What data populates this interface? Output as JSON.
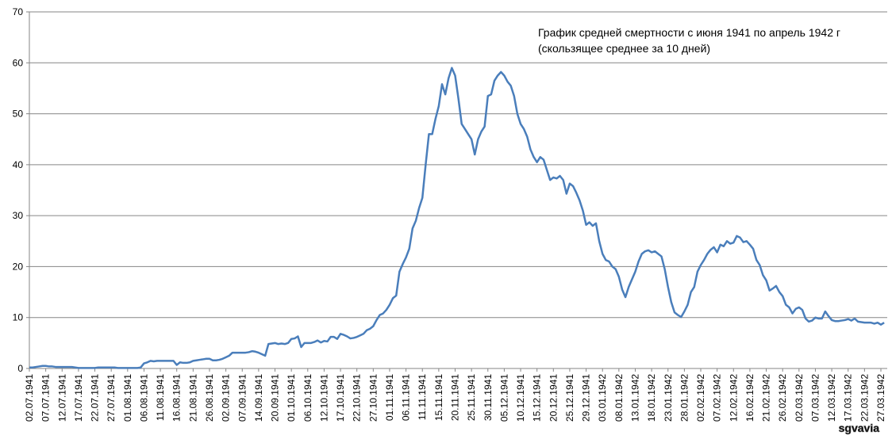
{
  "chart_data": {
    "type": "line",
    "annotation": [
      "График  средней смертности  с июня 1941 по апрель 1942 г",
      "(скользящее среднее за 10 дней)"
    ],
    "watermark": "sgvavia",
    "color": "#4a7ebb",
    "ylim": [
      0,
      70
    ],
    "yticks": [
      0,
      10,
      20,
      30,
      40,
      50,
      60,
      70
    ],
    "grid": true,
    "categories": [
      "02.07.1941",
      null,
      null,
      null,
      null,
      "07.07.1941",
      null,
      null,
      null,
      null,
      "12.07.1941",
      null,
      null,
      null,
      null,
      "17.07.1941",
      null,
      null,
      null,
      null,
      "22.07.1941",
      null,
      null,
      null,
      null,
      "27.07.1941",
      null,
      null,
      null,
      null,
      "01.08.1941",
      null,
      null,
      null,
      null,
      "06.08.1941",
      null,
      null,
      null,
      null,
      "11.08.1941",
      null,
      null,
      null,
      null,
      "16.08.1941",
      null,
      null,
      null,
      null,
      "21.08.1941",
      null,
      null,
      null,
      null,
      "26.08.1941",
      null,
      null,
      null,
      null,
      "02.09.1941",
      null,
      null,
      null,
      null,
      "07.09.1941",
      null,
      null,
      null,
      null,
      "14.09.1941",
      null,
      null,
      null,
      null,
      "20.09.1941",
      null,
      null,
      null,
      null,
      "01.10.1941",
      null,
      null,
      null,
      null,
      "06.10.1941",
      null,
      null,
      null,
      null,
      "12.10.1941",
      null,
      null,
      null,
      null,
      "17.10.1941",
      null,
      null,
      null,
      null,
      "22.10.1941",
      null,
      null,
      null,
      null,
      "27.10.1941",
      null,
      null,
      null,
      null,
      "01.11.1941",
      null,
      null,
      null,
      null,
      "06.11.1941",
      null,
      null,
      null,
      null,
      "11.11.1941",
      null,
      null,
      null,
      null,
      "15.11.1941",
      null,
      null,
      null,
      null,
      "20.11.1941",
      null,
      null,
      null,
      null,
      "25.11.1941",
      null,
      null,
      null,
      null,
      "30.11.1941",
      null,
      null,
      null,
      null,
      "05.12.1941",
      null,
      null,
      null,
      null,
      "10.12.1941",
      null,
      null,
      null,
      null,
      "15.12.1941",
      null,
      null,
      null,
      null,
      "20.12.1941",
      null,
      null,
      null,
      null,
      "25.12.1941",
      null,
      null,
      null,
      null,
      "29.12.1941",
      null,
      null,
      null,
      null,
      "03.01.1942",
      null,
      null,
      null,
      null,
      "08.01.1942",
      null,
      null,
      null,
      null,
      "13.01.1942",
      null,
      null,
      null,
      null,
      "18.01.1942",
      null,
      null,
      null,
      null,
      "23.01.1942",
      null,
      null,
      null,
      null,
      "28.01.1942",
      null,
      null,
      null,
      null,
      "02.02.1942",
      null,
      null,
      null,
      null,
      "07.02.1942",
      null,
      null,
      null,
      null,
      "12.02.1942",
      null,
      null,
      null,
      null,
      "16.02.1942",
      null,
      null,
      null,
      null,
      "21.02.1942",
      null,
      null,
      null,
      null,
      "26.02.1942",
      null,
      null,
      null,
      null,
      "02.03.1942",
      null,
      null,
      null,
      null,
      "07.03.1942",
      null,
      null,
      null,
      null,
      "12.03.1942",
      null,
      null,
      null,
      null,
      "17.03.1942",
      null,
      null,
      null,
      null,
      "22.03.1942",
      null,
      null,
      null,
      null,
      "27.03.1942",
      null
    ],
    "values": [
      0.2,
      0.2,
      0.3,
      0.4,
      0.5,
      0.5,
      0.4,
      0.4,
      0.3,
      0.3,
      0.3,
      0.3,
      0.3,
      0.3,
      0.2,
      0.1,
      0.1,
      0.1,
      0.1,
      0.1,
      0.1,
      0.2,
      0.2,
      0.2,
      0.2,
      0.2,
      0.2,
      0.1,
      0.1,
      0.1,
      0.1,
      0.1,
      0.1,
      0.1,
      0.2,
      1.0,
      1.2,
      1.5,
      1.4,
      1.5,
      1.5,
      1.5,
      1.5,
      1.5,
      1.5,
      0.7,
      1.2,
      1.1,
      1.1,
      1.2,
      1.5,
      1.6,
      1.7,
      1.8,
      1.9,
      1.9,
      1.6,
      1.6,
      1.7,
      1.9,
      2.2,
      2.5,
      3.1,
      3.1,
      3.1,
      3.1,
      3.1,
      3.2,
      3.4,
      3.3,
      3.1,
      2.8,
      2.5,
      4.8,
      4.9,
      5.0,
      4.8,
      4.9,
      4.8,
      5.0,
      5.8,
      5.9,
      6.3,
      4.2,
      5.0,
      5.0,
      5.0,
      5.2,
      5.5,
      5.1,
      5.4,
      5.3,
      6.2,
      6.2,
      5.8,
      6.8,
      6.6,
      6.3,
      5.9,
      6.0,
      6.2,
      6.5,
      6.8,
      7.5,
      7.8,
      8.3,
      9.5,
      10.5,
      10.8,
      11.5,
      12.5,
      13.8,
      14.3,
      19,
      20.5,
      21.8,
      23.5,
      27.5,
      29,
      31.5,
      33.5,
      40,
      46,
      46,
      49,
      51.5,
      55.8,
      53.8,
      57,
      59,
      57.5,
      53,
      48,
      47,
      46,
      45,
      42,
      45,
      46.5,
      47.5,
      53.5,
      53.8,
      56.5,
      57.5,
      58.2,
      57.5,
      56.3,
      55.5,
      53.5,
      50,
      48,
      47,
      45.5,
      43,
      41.5,
      40.5,
      41.5,
      41,
      39,
      37,
      37.5,
      37.3,
      37.8,
      37,
      34.3,
      36.3,
      35.8,
      34.5,
      33,
      31,
      28.2,
      28.7,
      28,
      28.5,
      25,
      22.5,
      21.3,
      21,
      20,
      19.5,
      18,
      15.5,
      14,
      16,
      17.5,
      19,
      21,
      22.5,
      23,
      23.2,
      22.8,
      23,
      22.5,
      22,
      19.5,
      16,
      13,
      11,
      10.5,
      10.1,
      11.2,
      12.5,
      15,
      16,
      19,
      20.3,
      21.3,
      22.5,
      23.3,
      23.8,
      22.8,
      24.3,
      24,
      25,
      24.5,
      24.7,
      26,
      25.7,
      24.8,
      25,
      24.3,
      23.5,
      21.3,
      20.3,
      18.3,
      17.3,
      15.3,
      15.7,
      16.2,
      15,
      14.2,
      12.5,
      12,
      10.8,
      11.7,
      12,
      11.5,
      9.8,
      9.2,
      9.4,
      10,
      9.8,
      9.8,
      11.2,
      10.3,
      9.5,
      9.3,
      9.3,
      9.4,
      9.5,
      9.7,
      9.4,
      9.8,
      9.2,
      9.1,
      9.0,
      9.0,
      9.0,
      8.8,
      9.0,
      8.6,
      9.0
    ]
  }
}
